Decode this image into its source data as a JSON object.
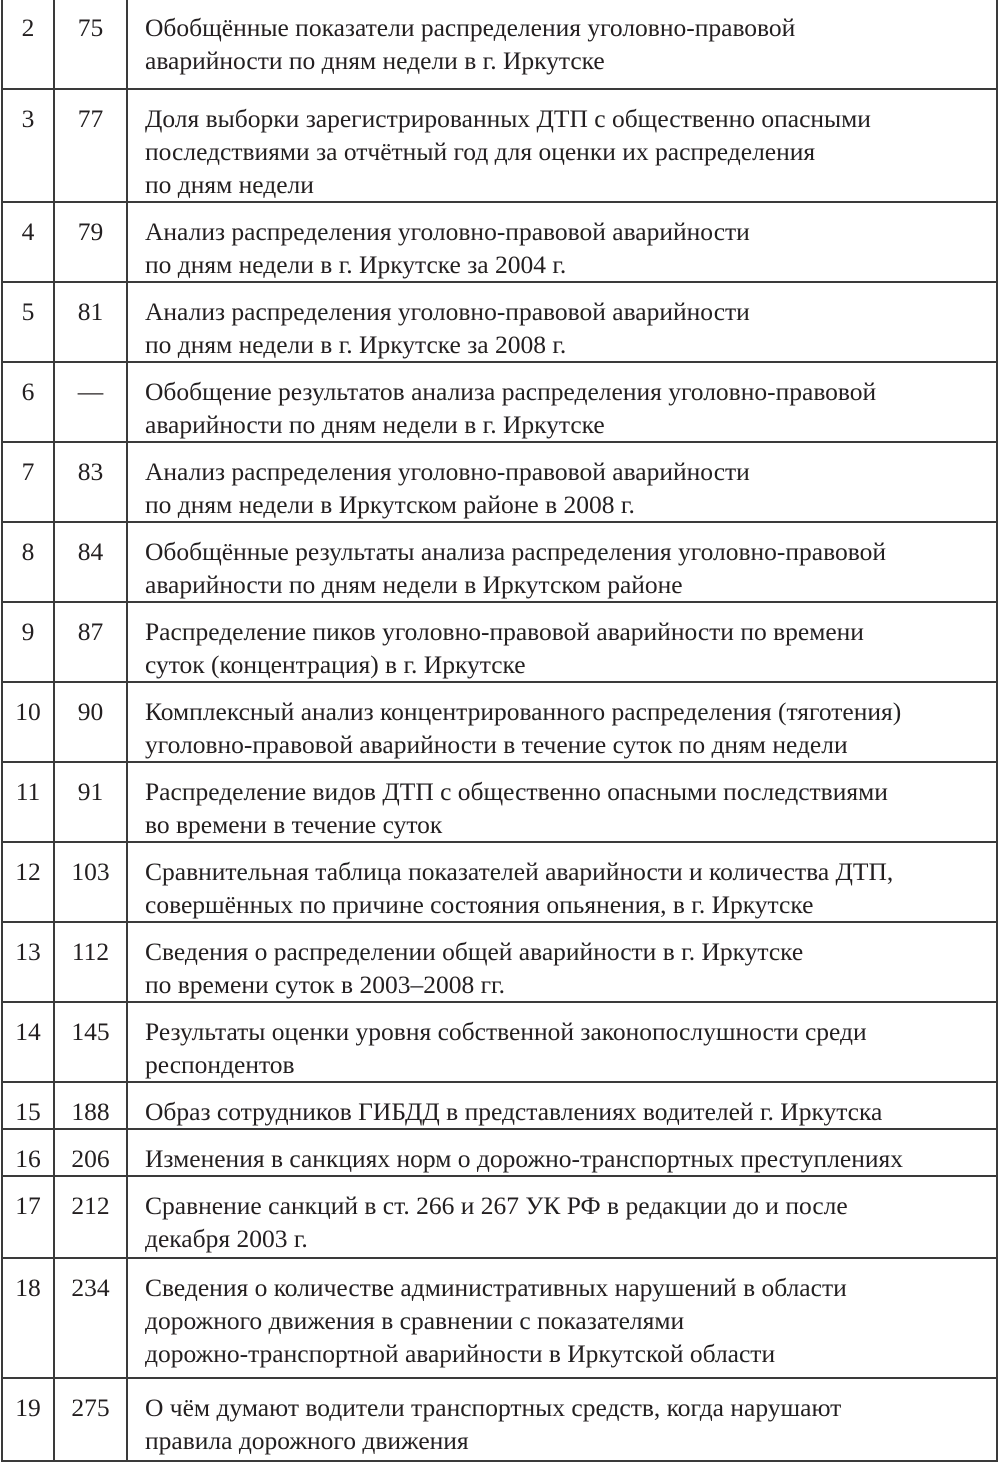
{
  "rows": [
    {
      "num": "2",
      "page": "75",
      "lines": [
        "Обобщённые показатели распределения уголовно-правовой",
        "аварийности по дням недели в г. Иркутске"
      ]
    },
    {
      "num": "3",
      "page": "77",
      "lines": [
        "Доля выборки зарегистрированных ДТП с общественно опасными",
        "последствиями за отчётный год для оценки их распределения",
        "по дням недели"
      ]
    },
    {
      "num": "4",
      "page": "79",
      "lines": [
        "Анализ распределения уголовно-правовой аварийности",
        "по дням недели в г. Иркутске за 2004 г."
      ]
    },
    {
      "num": "5",
      "page": "81",
      "lines": [
        "Анализ распределения уголовно-правовой аварийности",
        "по дням недели в г. Иркутске за 2008 г."
      ]
    },
    {
      "num": "6",
      "page": "—",
      "lines": [
        "Обобщение результатов анализа распределения уголовно-правовой",
        "аварийности по дням недели в г. Иркутске"
      ]
    },
    {
      "num": "7",
      "page": "83",
      "lines": [
        "Анализ распределения уголовно-правовой аварийности",
        "по дням недели в Иркутском районе в 2008 г."
      ]
    },
    {
      "num": "8",
      "page": "84",
      "lines": [
        "Обобщённые результаты анализа распределения уголовно-правовой",
        "аварийности по дням недели в Иркутском районе"
      ]
    },
    {
      "num": "9",
      "page": "87",
      "lines": [
        "Распределение пиков уголовно-правовой аварийности по времени",
        "суток (концентрация) в г. Иркутске"
      ]
    },
    {
      "num": "10",
      "page": "90",
      "lines": [
        "Комплексный анализ концентрированного распределения (тяготения)",
        "уголовно-правовой аварийности в течение суток по дням недели"
      ]
    },
    {
      "num": "11",
      "page": "91",
      "lines": [
        "Распределение видов ДТП с общественно опасными последствиями",
        "во времени в течение суток"
      ]
    },
    {
      "num": "12",
      "page": "103",
      "lines": [
        "Сравнительная таблица показателей аварийности и количества ДТП,",
        "совершённых по причине состояния опьянения, в г. Иркутске"
      ]
    },
    {
      "num": "13",
      "page": "112",
      "lines": [
        "Сведения о распределении общей аварийности в г. Иркутске",
        "по времени суток в 2003–2008 гг."
      ]
    },
    {
      "num": "14",
      "page": "145",
      "lines": [
        "Результаты оценки уровня собственной законопослушности среди",
        "респондентов"
      ]
    },
    {
      "num": "15",
      "page": "188",
      "lines": [
        "Образ сотрудников ГИБДД в представлениях водителей г. Иркутска"
      ]
    },
    {
      "num": "16",
      "page": "206",
      "lines": [
        "Изменения в санкциях норм о дорожно-транспортных преступлениях"
      ]
    },
    {
      "num": "17",
      "page": "212",
      "lines": [
        "Сравнение санкций в ст. 266 и 267 УК РФ в редакции до и после",
        "декабря 2003 г."
      ]
    },
    {
      "num": "18",
      "page": "234",
      "lines": [
        "Сведения о количестве административных нарушений в области",
        "дорожного движения в сравнении с показателями",
        "дорожно-транспортной аварийности в Иркутской области"
      ]
    },
    {
      "num": "19",
      "page": "275",
      "lines": [
        "О чём думают водители транспортных средств, когда нарушают",
        "правила дорожного движения"
      ]
    }
  ]
}
